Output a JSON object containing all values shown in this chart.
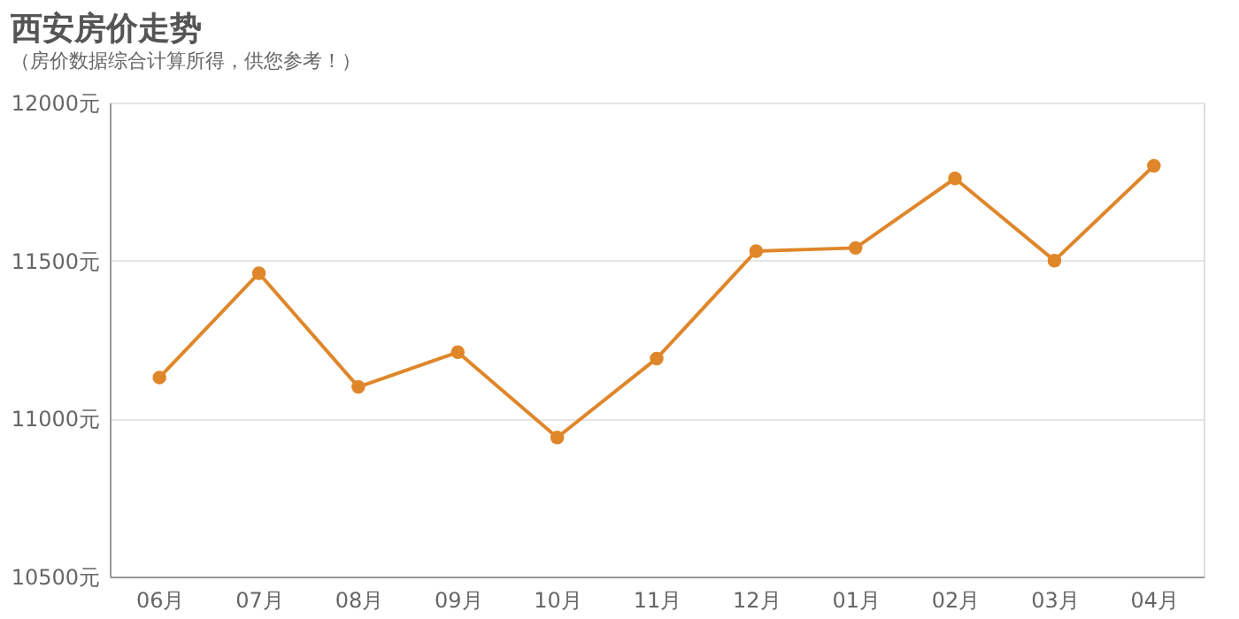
{
  "chart_data": {
    "type": "line",
    "title": "西安房价走势",
    "subtitle": "（房价数据综合计算所得，供您参考！）",
    "categories": [
      "06月",
      "07月",
      "08月",
      "09月",
      "10月",
      "11月",
      "12月",
      "01月",
      "02月",
      "03月",
      "04月"
    ],
    "series": [
      {
        "color": "#e0862a",
        "values": [
          11130,
          11460,
          11100,
          11210,
          10940,
          11190,
          11530,
          11540,
          11760,
          11500,
          11800
        ]
      }
    ],
    "ylim": [
      10500,
      12000
    ],
    "yticks": [
      {
        "value": 10500,
        "label": "10500元"
      },
      {
        "value": 11000,
        "label": "11000元"
      },
      {
        "value": 11500,
        "label": "11500元"
      },
      {
        "value": 12000,
        "label": "12000元"
      }
    ],
    "grid": "y",
    "marker": "circle",
    "line_style": "solid"
  }
}
